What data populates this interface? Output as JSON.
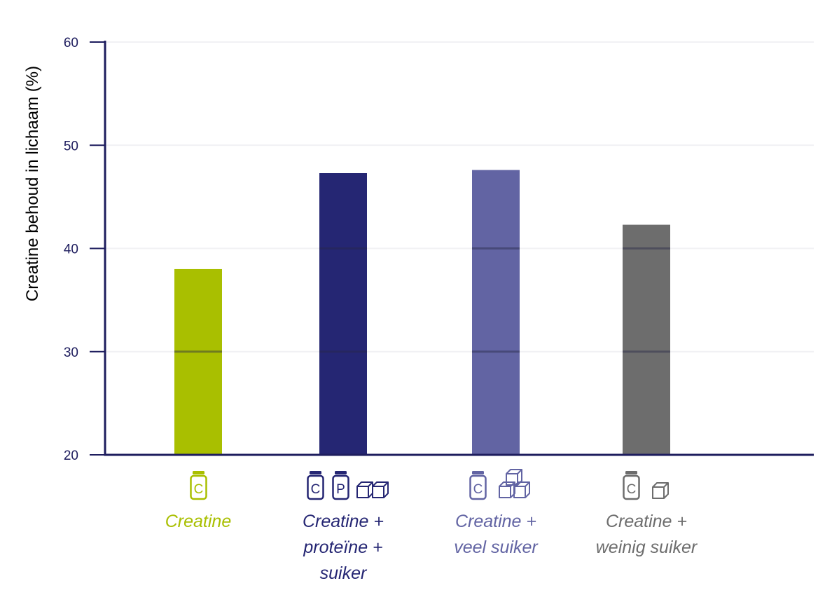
{
  "chart_data": {
    "type": "bar",
    "ylabel": "Creatine behoud in lichaam (%)",
    "ylim": [
      20,
      60
    ],
    "yticks": [
      "20",
      "30",
      "40",
      "50",
      "60"
    ],
    "grid": true,
    "categories": [
      {
        "label": "Creatine",
        "value": 38,
        "color": "#a9bf00",
        "icons": [
          "creatine-jar-icon"
        ]
      },
      {
        "label": "Creatine +\nproteïne +\nsuiker",
        "value": 47.3,
        "color": "#252673",
        "icons": [
          "creatine-jar-icon",
          "protein-jar-icon",
          "sugar-cube-icon",
          "sugar-cube-icon"
        ]
      },
      {
        "label": "Creatine +\nveel suiker",
        "value": 47.6,
        "color": "#6264a3",
        "icons": [
          "creatine-jar-icon",
          "sugar-cubes-stack-icon"
        ]
      },
      {
        "label": "Creatine +\nweinig suiker",
        "value": 42.3,
        "color": "#6d6d6d",
        "icons": [
          "creatine-jar-icon",
          "sugar-cube-icon"
        ]
      }
    ],
    "jar_letters": {
      "creatine": "C",
      "protein": "P"
    },
    "axis_color": "#1e1d5e"
  }
}
